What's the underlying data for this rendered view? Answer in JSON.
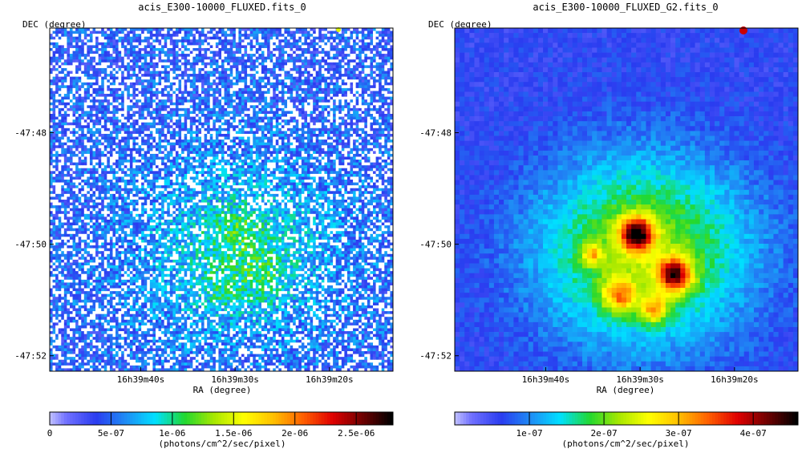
{
  "chart_data": [
    {
      "type": "heatmap",
      "title": "acis_E300-10000_FLUXED.fits_0",
      "xlabel": "RA (degree)",
      "ylabel": "DEC (degree)",
      "x_ticks": [
        "16h39m40s",
        "16h39m30s",
        "16h39m20s"
      ],
      "y_ticks": [
        "-47:48",
        "-47:50",
        "-47:52"
      ],
      "colorbar": {
        "label": "(photons/cm^2/sec/pixel)",
        "range": [
          0,
          2.8e-06
        ],
        "tick_values": [
          0,
          5e-07,
          1e-06,
          1.5e-06,
          2e-06,
          2.5e-06
        ],
        "tick_labels": [
          "0",
          "5e-07",
          "1e-06",
          "1.5e-06",
          "2e-06",
          "2.5e-06"
        ]
      },
      "image_style": "noisy",
      "grid": false
    },
    {
      "type": "heatmap",
      "title": "acis_E300-10000_FLUXED_G2.fits_0",
      "xlabel": "RA (degree)",
      "ylabel": "DEC (degree)",
      "x_ticks": [
        "16h39m40s",
        "16h39m30s",
        "16h39m20s"
      ],
      "y_ticks": [
        "-47:48",
        "-47:50",
        "-47:52"
      ],
      "colorbar": {
        "label": "(photons/cm^2/sec/pixel)",
        "range": [
          0,
          4.6e-07
        ],
        "tick_values": [
          1e-07,
          2e-07,
          3e-07,
          4e-07
        ],
        "tick_labels": [
          "1e-07",
          "2e-07",
          "3e-07",
          "4e-07"
        ]
      },
      "image_style": "smoothed",
      "grid": false
    }
  ],
  "colors": {
    "colormap": [
      "#ffffff",
      "#7070ff",
      "#2a3cf0",
      "#1f8cf5",
      "#00e0ff",
      "#22d830",
      "#a8e800",
      "#ffff00",
      "#ffc000",
      "#ff6000",
      "#e00000",
      "#700000",
      "#000000"
    ]
  }
}
